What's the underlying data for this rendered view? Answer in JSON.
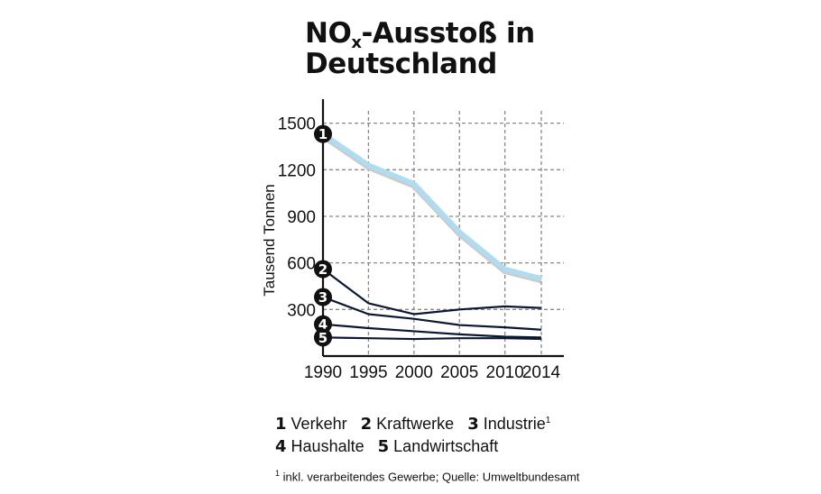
{
  "title_main": "NO",
  "title_sub": "x",
  "title_rest": "-Ausstoß in Deutschland",
  "chart_data": {
    "type": "line",
    "ylabel": "Tausend Tonnen",
    "xlabel": "",
    "x": [
      1990,
      1995,
      2000,
      2005,
      2010,
      2014
    ],
    "ylim": [
      0,
      1550
    ],
    "yticks": [
      300,
      600,
      900,
      1200,
      1500
    ],
    "grid": true,
    "series": [
      {
        "name": "Verkehr",
        "marker": "1",
        "color": "#aedcf2",
        "values": [
          1430,
          1230,
          1110,
          800,
          560,
          500
        ]
      },
      {
        "name": "Kraftwerke",
        "marker": "2",
        "color": "#0b1833",
        "values": [
          560,
          340,
          270,
          300,
          320,
          310
        ]
      },
      {
        "name": "Industrie",
        "marker": "3",
        "color": "#0b1833",
        "values": [
          380,
          270,
          240,
          200,
          185,
          170
        ]
      },
      {
        "name": "Haushalte",
        "marker": "4",
        "color": "#0b1833",
        "values": [
          205,
          180,
          160,
          140,
          125,
          120
        ]
      },
      {
        "name": "Landwirtschaft",
        "marker": "5",
        "color": "#0b1833",
        "values": [
          120,
          115,
          110,
          115,
          115,
          110
        ]
      }
    ]
  },
  "legend": [
    {
      "num": "1",
      "label": "Verkehr"
    },
    {
      "num": "2",
      "label": "Kraftwerke"
    },
    {
      "num": "3",
      "label": "Industrie",
      "sup": "1"
    },
    {
      "num": "4",
      "label": "Haushalte"
    },
    {
      "num": "5",
      "label": "Landwirtschaft"
    }
  ],
  "footnote": {
    "sup": "1",
    "text": "inkl. verarbeitendes Gewerbe; Quelle: Umweltbundesamt"
  }
}
